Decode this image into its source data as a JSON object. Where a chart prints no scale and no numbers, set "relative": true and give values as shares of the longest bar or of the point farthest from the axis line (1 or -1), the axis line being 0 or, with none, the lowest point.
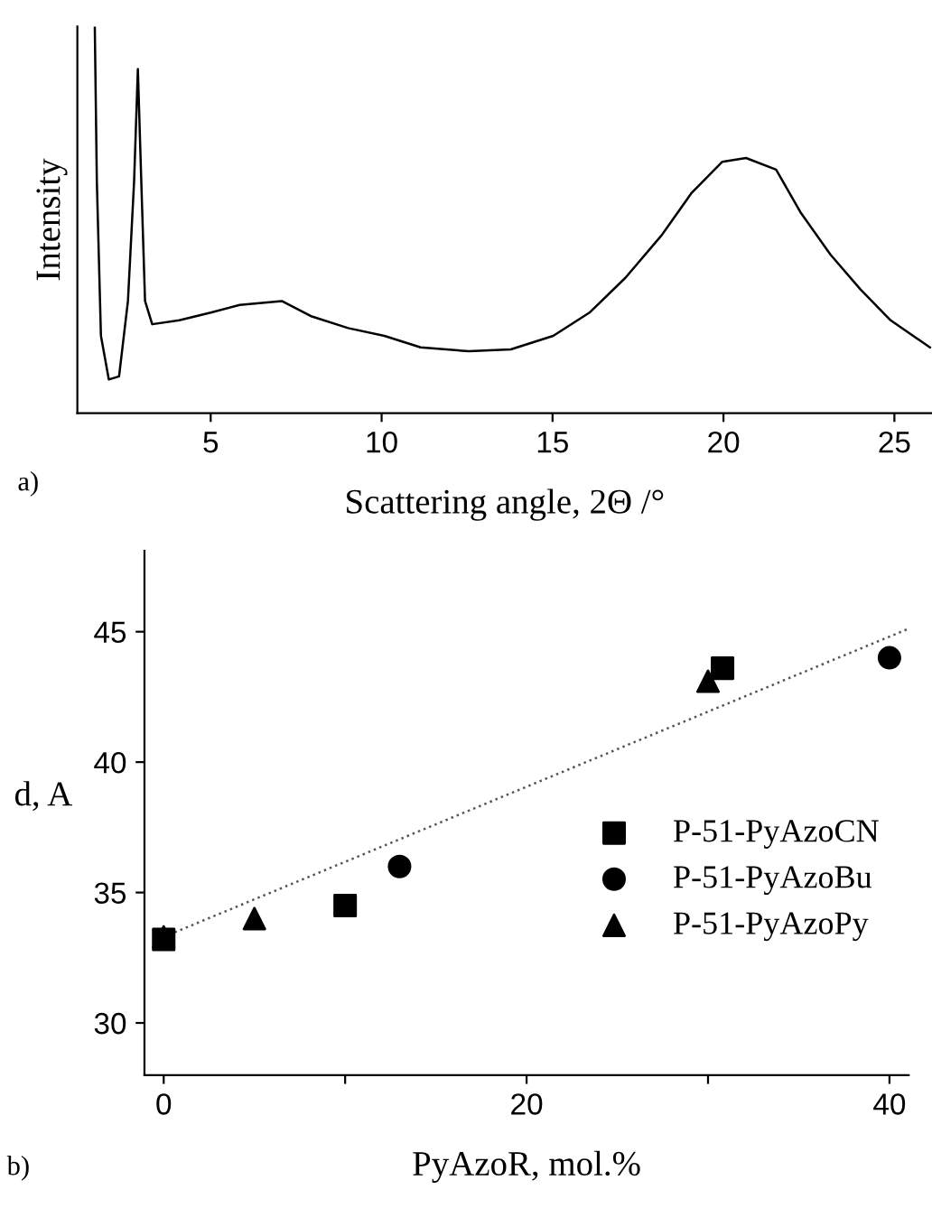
{
  "chart_data": [
    {
      "type": "line",
      "relative": true,
      "ylabel": "Intensity",
      "xlabel": "Scattering angle, 2Θ /°",
      "annotations": [
        "a)"
      ],
      "xlim": [
        1.1,
        26.1
      ],
      "xticks": [
        5,
        10,
        15,
        20,
        25
      ],
      "grid": false,
      "legend": false,
      "marker": "none",
      "line_style": "solid",
      "series": [
        {
          "color": "#000000",
          "x": [
            1.61,
            1.67,
            1.79,
            2.02,
            2.32,
            2.58,
            2.76,
            2.87,
            2.97,
            3.08,
            3.29,
            4.08,
            5.0,
            5.85,
            7.08,
            7.96,
            9.02,
            10.08,
            11.14,
            12.55,
            13.78,
            15.02,
            16.08,
            17.13,
            18.19,
            19.07,
            19.96,
            20.66,
            21.54,
            22.25,
            23.13,
            24.01,
            24.89,
            26.04
          ],
          "values": [
            1.0,
            0.6,
            0.2,
            0.087,
            0.095,
            0.29,
            0.6,
            0.89,
            0.6,
            0.29,
            0.23,
            0.24,
            0.26,
            0.28,
            0.29,
            0.25,
            0.22,
            0.2,
            0.17,
            0.16,
            0.165,
            0.2,
            0.26,
            0.35,
            0.46,
            0.57,
            0.65,
            0.66,
            0.63,
            0.52,
            0.41,
            0.32,
            0.24,
            0.17
          ]
        }
      ]
    },
    {
      "type": "scatter",
      "ylabel": "d, A",
      "xlabel": "PyAzoR, mol.%",
      "annotations": [
        "b)"
      ],
      "xlim": [
        -1.06,
        41.06
      ],
      "ylim": [
        28,
        48.1
      ],
      "xticks": [
        0,
        {
          "value": 10,
          "label": null
        },
        20,
        {
          "value": 30,
          "label": null
        },
        40
      ],
      "yticks": [
        30,
        35,
        40,
        45
      ],
      "grid": false,
      "legend": "lower right",
      "series": [
        {
          "name": "P-51-PyAzoCN",
          "color": "#000000",
          "marker": "square",
          "x": [
            0,
            10,
            30.8
          ],
          "values": [
            33.2,
            34.5,
            43.6
          ]
        },
        {
          "name": "P-51-PyAzoBu",
          "color": "#000000",
          "marker": "circle",
          "x": [
            13,
            40
          ],
          "values": [
            36.0,
            44.0
          ]
        },
        {
          "name": "P-51-PyAzoPy",
          "color": "#000000",
          "marker": "triangle",
          "x": [
            0,
            5,
            30
          ],
          "values": [
            33.3,
            34.0,
            43.1
          ]
        },
        {
          "type": "line",
          "color": "#555555",
          "line_style": "dotted",
          "marker": "none",
          "x": [
            0,
            41.0
          ],
          "values": [
            33.3,
            45.1
          ]
        }
      ]
    }
  ]
}
